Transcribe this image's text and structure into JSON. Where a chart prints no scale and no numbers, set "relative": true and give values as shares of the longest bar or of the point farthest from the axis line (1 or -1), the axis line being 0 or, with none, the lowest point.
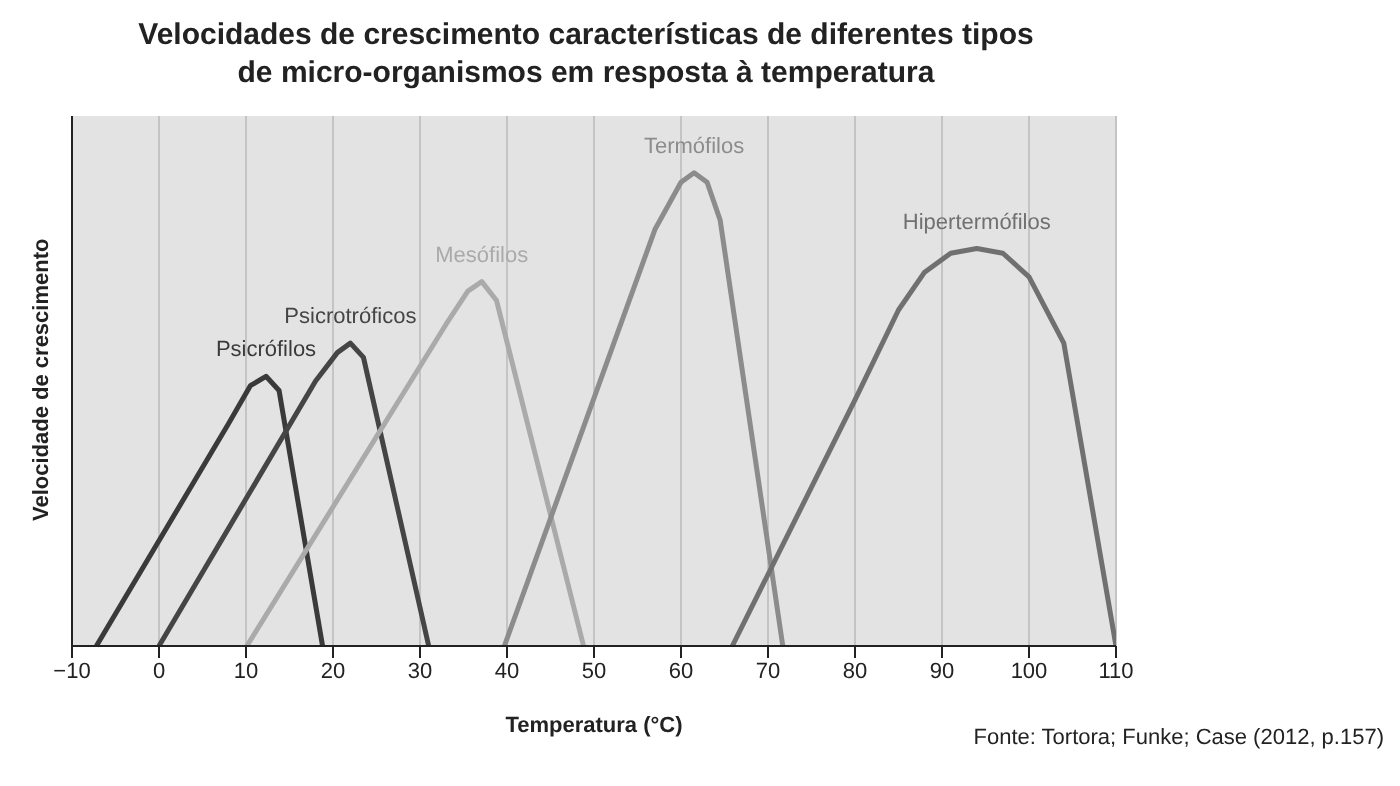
{
  "chart_data": {
    "type": "line",
    "title": "Velocidades de crescimento características de diferentes tipos\nde micro-organismos em resposta à temperatura",
    "xlabel": "Temperatura (°C)",
    "ylabel": "Velocidade de crescimento",
    "relative": true,
    "xlim": [
      -10,
      110
    ],
    "xticks": [
      -10,
      0,
      10,
      20,
      30,
      40,
      50,
      60,
      70,
      80,
      90,
      100,
      110
    ],
    "grid": "x",
    "legend": false,
    "marker": "none",
    "line_style": "solid",
    "series": [
      {
        "name": "Psicrófilos",
        "color": "#3a3a3a",
        "x": [
          -7.2,
          8,
          10.5,
          12.3,
          13.8,
          18.8
        ],
        "values": [
          0,
          0.47,
          0.55,
          0.57,
          0.54,
          0
        ]
      },
      {
        "name": "Psicrotróficos",
        "color": "#454545",
        "x": [
          0,
          18,
          20.5,
          22,
          23.5,
          31
        ],
        "values": [
          0,
          0.56,
          0.62,
          0.64,
          0.61,
          0
        ]
      },
      {
        "name": "Mesófilos",
        "color": "#aaaaaa",
        "x": [
          10.1,
          33,
          35.5,
          37.1,
          38.8,
          48.8
        ],
        "values": [
          0,
          0.68,
          0.75,
          0.77,
          0.73,
          0
        ]
      },
      {
        "name": "Termófilos",
        "color": "#8c8c8c",
        "x": [
          39.7,
          57,
          60,
          61.5,
          63,
          64.5,
          71.7
        ],
        "values": [
          0,
          0.88,
          0.98,
          1,
          0.98,
          0.9,
          0
        ]
      },
      {
        "name": "Hipertermófilos",
        "color": "#707070",
        "x": [
          65.9,
          80,
          85,
          88,
          91,
          94,
          97,
          100,
          104,
          110
        ],
        "values": [
          0,
          0.52,
          0.71,
          0.79,
          0.83,
          0.84,
          0.83,
          0.78,
          0.64,
          0
        ]
      }
    ],
    "annotations": [
      "Fonte: Tortora; Funke; Case (2012, p.157)"
    ]
  }
}
